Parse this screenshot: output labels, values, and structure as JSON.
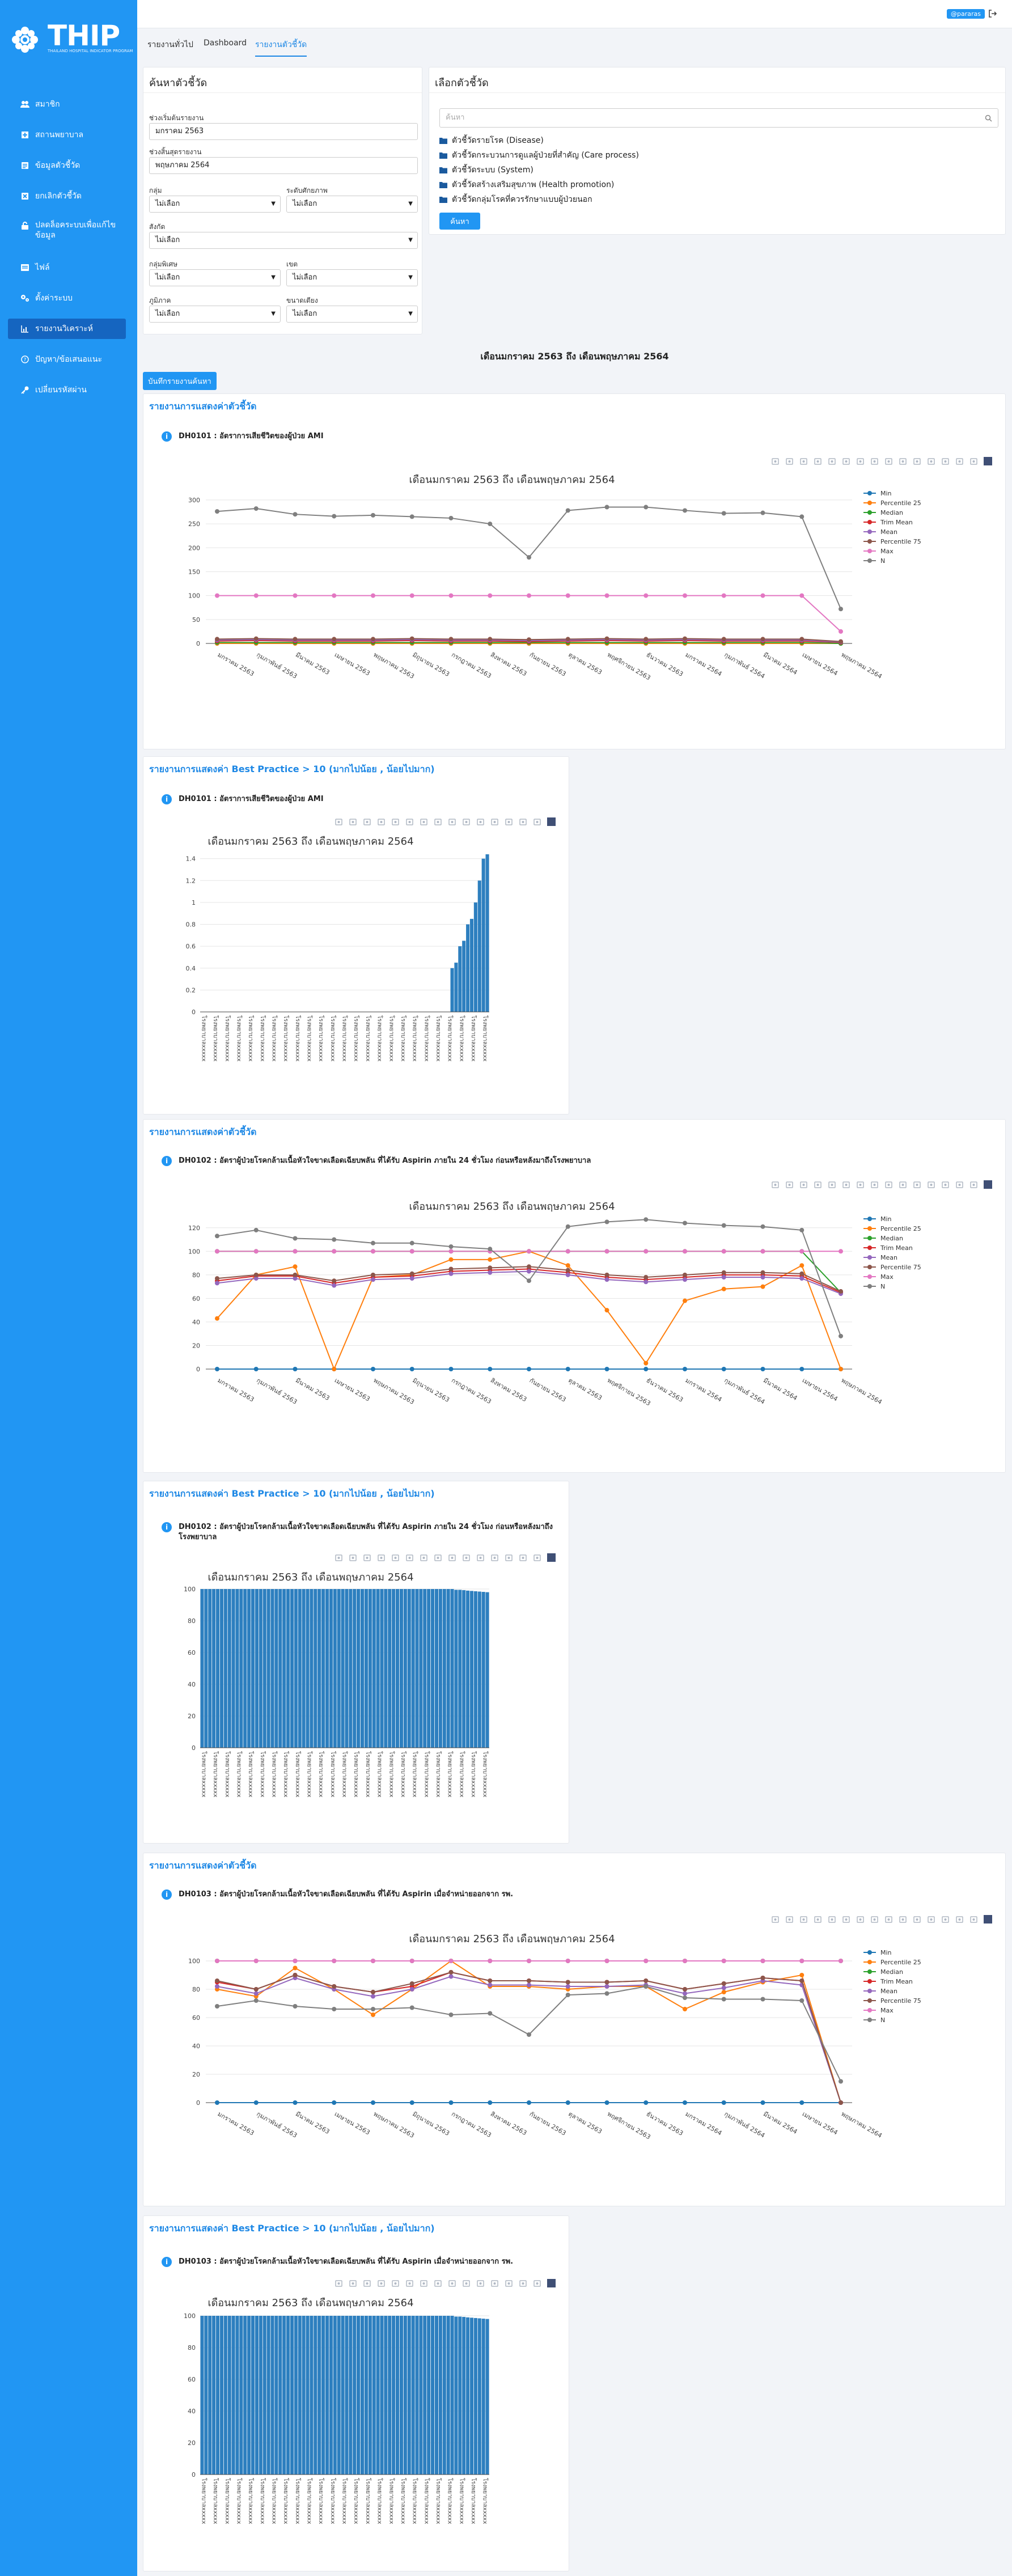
{
  "app": {
    "logo_text": "THIP",
    "logo_subtitle": "THAILAND HOSPITAL INDICATOR PROGRAM",
    "user_badge": "@pararas"
  },
  "sidebar": {
    "items": [
      {
        "label": "สมาชิก",
        "icon": "members-icon"
      },
      {
        "label": "สถานพยาบาล",
        "icon": "hospital-icon"
      },
      {
        "label": "ข้อมูลตัวชี้วัด",
        "icon": "indicator-data-icon"
      },
      {
        "label": "ยกเลิกตัวชี้วัด",
        "icon": "cancel-indicator-icon"
      },
      {
        "label": "ปลดล็อคระบบเพื่อแก้ไขข้อมูล",
        "icon": "unlock-icon"
      },
      {
        "label": "ไฟล์",
        "icon": "file-icon"
      },
      {
        "label": "ตั้งค่าระบบ",
        "icon": "settings-icon"
      },
      {
        "label": "รายงานวิเคราะห์",
        "icon": "chart-icon"
      },
      {
        "label": "ปัญหา/ข้อเสนอแนะ",
        "icon": "feedback-icon"
      },
      {
        "label": "เปลี่ยนรหัสผ่าน",
        "icon": "key-icon"
      }
    ],
    "active_index": 7
  },
  "tabs": [
    {
      "label": "รายงานทั่วไป"
    },
    {
      "label": "Dashboard"
    },
    {
      "label": "รายงานตัวชี้วัด"
    }
  ],
  "search_panel": {
    "title": "ค้นหาตัวชี้วัด",
    "start_label": "ช่วงเริ่มต้นรายงาน",
    "start_value": "มกราคม 2563",
    "end_label": "ช่วงสิ้นสุดรายงาน",
    "end_value": "พฤษภาคม 2564",
    "group_label": "กลุ่ม",
    "group_value": "ไม่เลือก",
    "level_label": "ระดับศักยภาพ",
    "level_value": "ไม่เลือก",
    "affiliation_label": "สังกัด",
    "affiliation_value": "ไม่เลือก",
    "special_label": "กลุ่มพิเศษ",
    "special_value": "ไม่เลือก",
    "zone_label": "เขต",
    "zone_value": "ไม่เลือก",
    "region_label": "ภูมิภาค",
    "region_value": "ไม่เลือก",
    "beds_label": "ขนาดเตียง",
    "beds_value": "ไม่เลือก"
  },
  "select_panel": {
    "title": "เลือกตัวชี้วัด",
    "search_placeholder": "ค้นหา",
    "folders": [
      "ตัวชี้วัดรายโรค (Disease)",
      "ตัวชี้วัดกระบวนการดูแลผู้ป่วยที่สำคัญ (Care process)",
      "ตัวชี้วัดระบบ (System)",
      "ตัวชี้วัดสร้างเสริมสุขภาพ (Health promotion)",
      "ตัวชี้วัดกลุ่มโรคที่ควรรักษาแบบผู้ป่วยนอก"
    ],
    "search_button": "ค้นหา"
  },
  "period_title": "เดือนมกราคม 2563 ถึง เดือนพฤษภาคม 2564",
  "save_button": "บันทึกรายงานค้นหา",
  "reports": [
    {
      "heading": "รายงานการแสดงค่าตัวชี้วัด",
      "indicator": "DH0101 : อัตราการเสียชีวิตของผู้ป่วย AMI",
      "chart_title": "เดือนมกราคม 2563 ถึง เดือนพฤษภาคม 2564"
    },
    {
      "heading": "รายงานการแสดงค่า Best Practice > 10 (มากไปน้อย , น้อยไปมาก)",
      "indicator": "DH0101 : อัตราการเสียชีวิตของผู้ป่วย AMI",
      "chart_title": "เดือนมกราคม 2563 ถึง เดือนพฤษภาคม 2564"
    },
    {
      "heading": "รายงานการแสดงค่าตัวชี้วัด",
      "indicator": "DH0102 : อัตราผู้ป่วยโรคกล้ามเนื้อหัวใจขาดเลือดเฉียบพลัน ที่ได้รับ Aspirin ภายใน 24 ชั่วโมง ก่อนหรือหลังมาถึงโรงพยาบาล",
      "chart_title": "เดือนมกราคม 2563 ถึง เดือนพฤษภาคม 2564"
    },
    {
      "heading": "รายงานการแสดงค่า Best Practice > 10 (มากไปน้อย , น้อยไปมาก)",
      "indicator": "DH0102 : อัตราผู้ป่วยโรคกล้ามเนื้อหัวใจขาดเลือดเฉียบพลัน ที่ได้รับ Aspirin ภายใน 24 ชั่วโมง ก่อนหรือหลังมาถึงโรงพยาบาล",
      "chart_title": "เดือนมกราคม 2563 ถึง เดือนพฤษภาคม 2564"
    },
    {
      "heading": "รายงานการแสดงค่าตัวชี้วัด",
      "indicator": "DH0103 : อัตราผู้ป่วยโรคกล้ามเนื้อหัวใจขาดเลือดเฉียบพลัน ที่ได้รับ Aspirin เมื่อจำหน่ายออกจาก รพ.",
      "chart_title": "เดือนมกราคม 2563 ถึง เดือนพฤษภาคม 2564"
    },
    {
      "heading": "รายงานการแสดงค่า Best Practice > 10 (มากไปน้อย , น้อยไปมาก)",
      "indicator": "DH0103 : อัตราผู้ป่วยโรคกล้ามเนื้อหัวใจขาดเลือดเฉียบพลัน ที่ได้รับ Aspirin เมื่อจำหน่ายออกจาก รพ.",
      "chart_title": "เดือนมกราคม 2563 ถึง เดือนพฤษภาคม 2564"
    }
  ],
  "chart_data": [
    {
      "type": "line",
      "categories": [
        "มกราคม 2563",
        "กุมภาพันธ์ 2563",
        "มีนาคม 2563",
        "เมษายน 2563",
        "พฤษภาคม 2563",
        "มิถุนายน 2563",
        "กรกฎาคม 2563",
        "สิงหาคม 2563",
        "กันยายน 2563",
        "ตุลาคม 2563",
        "พฤศจิกายน 2563",
        "ธันวาคม 2563",
        "มกราคม 2564",
        "กุมภาพันธ์ 2564",
        "มีนาคม 2564",
        "เมษายน 2564",
        "พฤษภาคม 2564"
      ],
      "ylim": [
        0,
        320
      ],
      "yticks": [
        0,
        50,
        100,
        150,
        200,
        250,
        300
      ],
      "legend_position": "right",
      "series": [
        {
          "name": "Min",
          "color": "#1f77b4",
          "values": [
            0,
            0,
            0,
            0,
            0,
            0,
            0,
            0,
            0,
            0,
            0,
            0,
            0,
            0,
            0,
            0,
            0
          ]
        },
        {
          "name": "Percentile 25",
          "color": "#ff7f0e",
          "values": [
            0,
            0,
            0,
            0,
            0,
            0,
            0,
            0,
            0,
            0,
            0,
            0,
            0,
            0,
            0,
            0,
            0
          ]
        },
        {
          "name": "Median",
          "color": "#2ca02c",
          "values": [
            2,
            2,
            2,
            2,
            2,
            2,
            2,
            2,
            2,
            2,
            2,
            2,
            2,
            2,
            2,
            2,
            0
          ]
        },
        {
          "name": "Trim Mean",
          "color": "#d62728",
          "values": [
            5,
            6,
            5,
            5,
            5,
            6,
            5,
            5,
            4,
            5,
            6,
            5,
            6,
            5,
            5,
            5,
            2
          ]
        },
        {
          "name": "Mean",
          "color": "#9467bd",
          "values": [
            7,
            8,
            7,
            7,
            7,
            8,
            7,
            7,
            6,
            7,
            8,
            7,
            8,
            7,
            7,
            7,
            3
          ]
        },
        {
          "name": "Percentile 75",
          "color": "#8c564b",
          "values": [
            9,
            10,
            9,
            9,
            9,
            10,
            9,
            9,
            8,
            9,
            10,
            9,
            10,
            9,
            9,
            9,
            4
          ]
        },
        {
          "name": "Max",
          "color": "#e377c2",
          "values": [
            100,
            100,
            100,
            100,
            100,
            100,
            100,
            100,
            100,
            100,
            100,
            100,
            100,
            100,
            100,
            100,
            25
          ]
        },
        {
          "name": "N",
          "color": "#7f7f7f",
          "values": [
            276,
            282,
            270,
            266,
            268,
            265,
            262,
            250,
            180,
            278,
            285,
            285,
            278,
            272,
            273,
            265,
            72
          ]
        }
      ]
    },
    {
      "type": "bar",
      "ylim": [
        0,
        1.45
      ],
      "yticks": [
        0,
        0.2,
        0.4,
        0.6,
        0.8,
        1,
        1.2,
        1.4
      ],
      "category_label": "โรงพยาบาลxxxxx",
      "values": [
        0,
        0,
        0,
        0,
        0,
        0,
        0,
        0,
        0,
        0,
        0,
        0,
        0,
        0,
        0,
        0,
        0,
        0,
        0,
        0,
        0,
        0,
        0,
        0,
        0,
        0,
        0,
        0,
        0,
        0,
        0,
        0,
        0,
        0,
        0,
        0,
        0,
        0,
        0,
        0,
        0,
        0,
        0,
        0,
        0,
        0,
        0,
        0,
        0,
        0,
        0,
        0,
        0,
        0,
        0,
        0,
        0,
        0,
        0,
        0,
        0,
        0,
        0,
        0,
        0.4,
        0.45,
        0.6,
        0.65,
        0.8,
        0.85,
        1.0,
        1.2,
        1.4,
        1.44
      ],
      "bar_color": "#2d7fbf"
    },
    {
      "type": "line",
      "categories": [
        "มกราคม 2563",
        "กุมภาพันธ์ 2563",
        "มีนาคม 2563",
        "เมษายน 2563",
        "พฤษภาคม 2563",
        "มิถุนายน 2563",
        "กรกฎาคม 2563",
        "สิงหาคม 2563",
        "กันยายน 2563",
        "ตุลาคม 2563",
        "พฤศจิกายน 2563",
        "ธันวาคม 2563",
        "มกราคม 2564",
        "กุมภาพันธ์ 2564",
        "มีนาคม 2564",
        "เมษายน 2564",
        "พฤษภาคม 2564"
      ],
      "ylim": [
        0,
        130
      ],
      "yticks": [
        0,
        20,
        40,
        60,
        80,
        100,
        120
      ],
      "legend_position": "right",
      "series": [
        {
          "name": "Min",
          "color": "#1f77b4",
          "values": [
            0,
            0,
            0,
            0,
            0,
            0,
            0,
            0,
            0,
            0,
            0,
            0,
            0,
            0,
            0,
            0,
            0
          ]
        },
        {
          "name": "Percentile 25",
          "color": "#ff7f0e",
          "values": [
            43,
            80,
            87,
            0,
            78,
            80,
            93,
            93,
            100,
            88,
            50,
            5,
            58,
            68,
            70,
            88,
            0
          ]
        },
        {
          "name": "Median",
          "color": "#2ca02c",
          "values": [
            100,
            100,
            100,
            100,
            100,
            100,
            100,
            100,
            100,
            100,
            100,
            100,
            100,
            100,
            100,
            100,
            65
          ]
        },
        {
          "name": "Trim Mean",
          "color": "#d62728",
          "values": [
            75,
            79,
            79,
            73,
            78,
            79,
            83,
            84,
            85,
            82,
            78,
            76,
            78,
            80,
            80,
            79,
            65
          ]
        },
        {
          "name": "Mean",
          "color": "#9467bd",
          "values": [
            73,
            77,
            77,
            71,
            76,
            77,
            81,
            82,
            83,
            80,
            76,
            74,
            76,
            78,
            78,
            77,
            64
          ]
        },
        {
          "name": "Percentile 75",
          "color": "#8c564b",
          "values": [
            77,
            80,
            80,
            75,
            80,
            81,
            85,
            86,
            87,
            84,
            80,
            78,
            80,
            82,
            82,
            81,
            66
          ]
        },
        {
          "name": "Max",
          "color": "#e377c2",
          "values": [
            100,
            100,
            100,
            100,
            100,
            100,
            100,
            100,
            100,
            100,
            100,
            100,
            100,
            100,
            100,
            100,
            100
          ]
        },
        {
          "name": "N",
          "color": "#7f7f7f",
          "values": [
            113,
            118,
            111,
            110,
            107,
            107,
            104,
            102,
            75,
            121,
            125,
            127,
            124,
            122,
            121,
            118,
            28
          ]
        }
      ]
    },
    {
      "type": "bar",
      "ylim": [
        0,
        100
      ],
      "yticks": [
        0,
        20,
        40,
        60,
        80,
        100
      ],
      "category_label": "โรงพยาบาลxxxxx",
      "values": [
        100,
        100,
        100,
        100,
        100,
        100,
        100,
        100,
        100,
        100,
        100,
        100,
        100,
        100,
        100,
        100,
        100,
        100,
        100,
        100,
        100,
        100,
        100,
        100,
        100,
        100,
        100,
        100,
        100,
        100,
        100,
        100,
        100,
        100,
        100,
        100,
        100,
        100,
        100,
        100,
        100,
        100,
        100,
        100,
        100,
        100,
        100,
        100,
        100,
        100,
        100,
        100,
        100,
        100,
        100,
        100,
        100,
        100,
        100,
        100,
        100,
        100,
        100,
        100,
        100,
        99.5,
        99.5,
        99.3,
        99,
        98.8,
        98.6,
        98.4,
        98.2,
        98
      ],
      "bar_color": "#2d7fbf"
    },
    {
      "type": "line",
      "categories": [
        "มกราคม 2563",
        "กุมภาพันธ์ 2563",
        "มีนาคม 2563",
        "เมษายน 2563",
        "พฤษภาคม 2563",
        "มิถุนายน 2563",
        "กรกฎาคม 2563",
        "สิงหาคม 2563",
        "กันยายน 2563",
        "ตุลาคม 2563",
        "พฤศจิกายน 2563",
        "ธันวาคม 2563",
        "มกราคม 2564",
        "กุมภาพันธ์ 2564",
        "มีนาคม 2564",
        "เมษายน 2564",
        "พฤษภาคม 2564"
      ],
      "ylim": [
        0,
        108
      ],
      "yticks": [
        0,
        20,
        40,
        60,
        80,
        100
      ],
      "legend_position": "right",
      "series": [
        {
          "name": "Min",
          "color": "#1f77b4",
          "values": [
            0,
            0,
            0,
            0,
            0,
            0,
            0,
            0,
            0,
            0,
            0,
            0,
            0,
            0,
            0,
            0,
            0
          ]
        },
        {
          "name": "Percentile 25",
          "color": "#ff7f0e",
          "values": [
            80,
            75,
            95,
            80,
            62,
            80,
            100,
            82,
            82,
            80,
            82,
            82,
            66,
            78,
            85,
            90,
            0
          ]
        },
        {
          "name": "Median",
          "color": "#2ca02c",
          "values": [
            100,
            100,
            100,
            100,
            100,
            100,
            100,
            100,
            100,
            100,
            100,
            100,
            100,
            100,
            100,
            100,
            100
          ]
        },
        {
          "name": "Trim Mean",
          "color": "#d62728",
          "values": [
            85,
            80,
            90,
            82,
            78,
            82,
            92,
            86,
            86,
            85,
            85,
            86,
            80,
            84,
            88,
            86,
            0
          ]
        },
        {
          "name": "Mean",
          "color": "#9467bd",
          "values": [
            82,
            77,
            88,
            80,
            75,
            80,
            89,
            83,
            83,
            82,
            82,
            83,
            77,
            81,
            86,
            83,
            0
          ]
        },
        {
          "name": "Percentile 75",
          "color": "#8c564b",
          "values": [
            86,
            80,
            90,
            82,
            78,
            84,
            92,
            86,
            86,
            85,
            85,
            86,
            80,
            84,
            88,
            86,
            0
          ]
        },
        {
          "name": "Max",
          "color": "#e377c2",
          "values": [
            100,
            100,
            100,
            100,
            100,
            100,
            100,
            100,
            100,
            100,
            100,
            100,
            100,
            100,
            100,
            100,
            100
          ]
        },
        {
          "name": "N",
          "color": "#7f7f7f",
          "values": [
            68,
            72,
            68,
            66,
            66,
            67,
            62,
            63,
            48,
            76,
            77,
            82,
            74,
            73,
            73,
            72,
            15
          ]
        }
      ]
    },
    {
      "type": "bar",
      "ylim": [
        0,
        100
      ],
      "yticks": [
        0,
        20,
        40,
        60,
        80,
        100
      ],
      "category_label": "โรงพยาบาลxxxxx",
      "values": [
        100,
        100,
        100,
        100,
        100,
        100,
        100,
        100,
        100,
        100,
        100,
        100,
        100,
        100,
        100,
        100,
        100,
        100,
        100,
        100,
        100,
        100,
        100,
        100,
        100,
        100,
        100,
        100,
        100,
        100,
        100,
        100,
        100,
        100,
        100,
        100,
        100,
        100,
        100,
        100,
        100,
        100,
        100,
        100,
        100,
        100,
        100,
        100,
        100,
        100,
        100,
        100,
        100,
        100,
        100,
        100,
        100,
        100,
        100,
        100,
        100,
        100,
        100,
        100,
        100,
        99.5,
        99.5,
        99.3,
        99,
        98.8,
        98.6,
        98.4,
        98.2,
        98
      ],
      "bar_color": "#2d7fbf"
    }
  ]
}
